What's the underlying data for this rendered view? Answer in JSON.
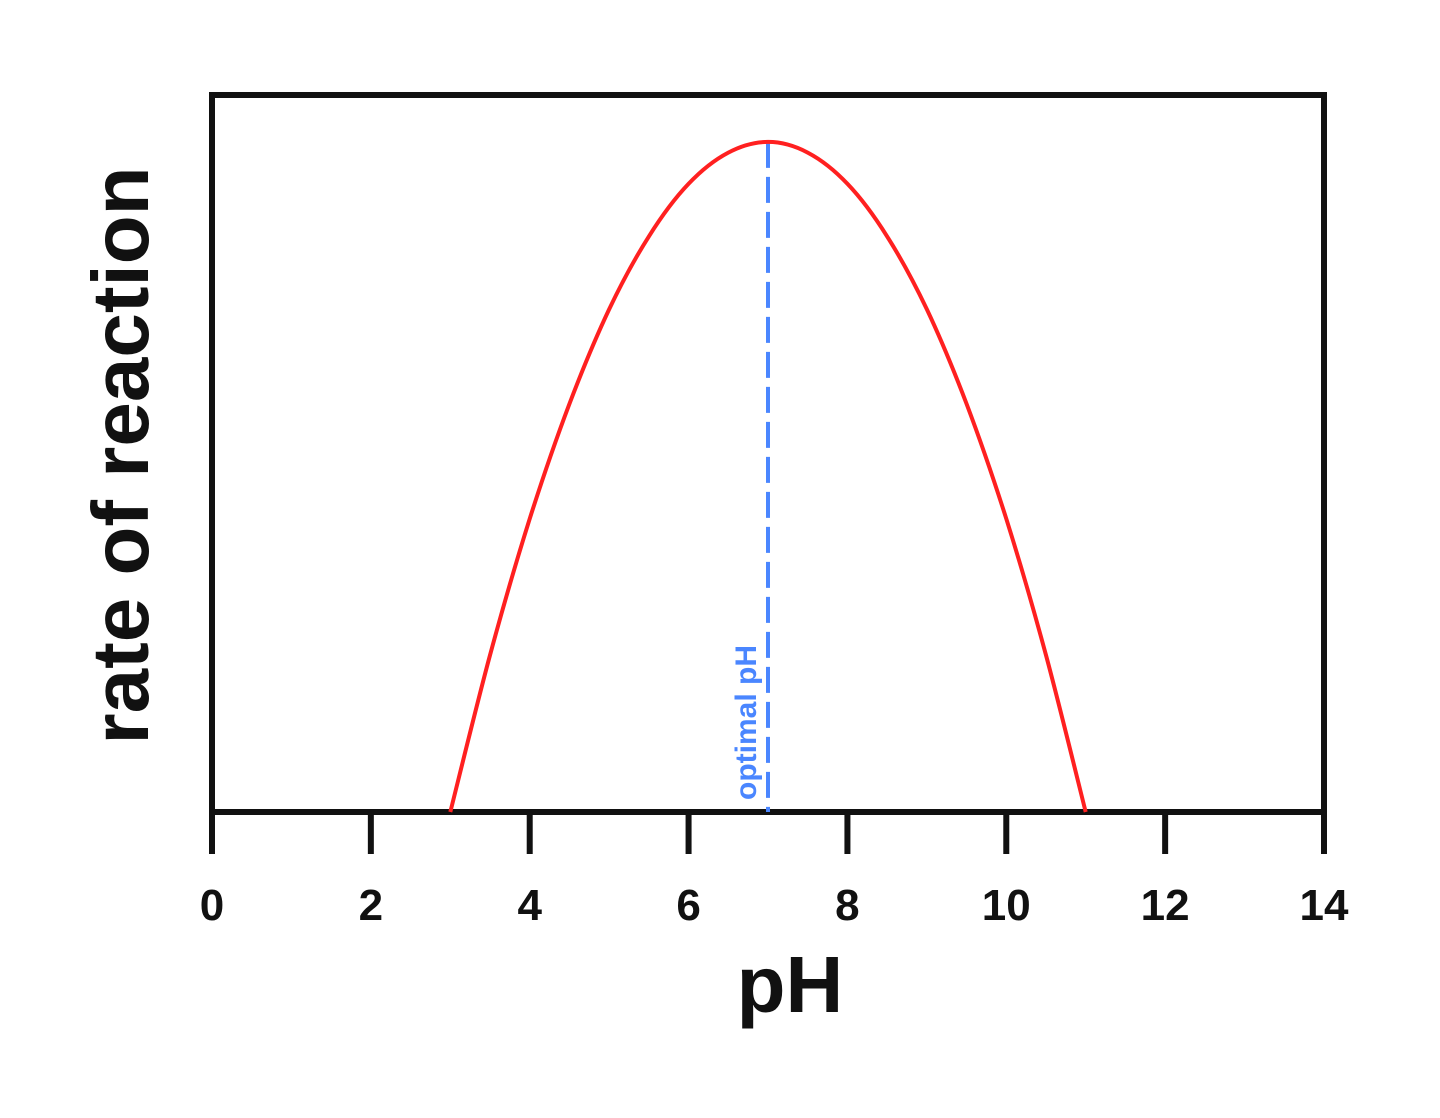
{
  "chart_data": {
    "type": "line",
    "xlabel": "pH",
    "ylabel": "rate of reaction",
    "xlim": [
      0,
      14
    ],
    "ylim": [
      0,
      1.07
    ],
    "x_ticks": [
      "0",
      "2",
      "4",
      "6",
      "8",
      "10",
      "12",
      "14"
    ],
    "y_ticks_shown": false,
    "grid": false,
    "series": [
      {
        "color": "#ff2020",
        "x": [
          3.0,
          3.5,
          4.0,
          4.5,
          5.0,
          5.5,
          6.0,
          6.5,
          7.0,
          7.5,
          8.0,
          8.5,
          9.0,
          9.5,
          10.0,
          10.5,
          11.0
        ],
        "y": [
          0.0,
          0.234,
          0.4375,
          0.609,
          0.75,
          0.859,
          0.9375,
          0.984,
          1.0,
          0.984,
          0.9375,
          0.859,
          0.75,
          0.609,
          0.4375,
          0.234,
          0.0
        ]
      }
    ],
    "annotations": [
      {
        "text": "optimal pH",
        "x": 7,
        "style": "dashed vertical line",
        "color": "#4a86ff"
      }
    ]
  }
}
